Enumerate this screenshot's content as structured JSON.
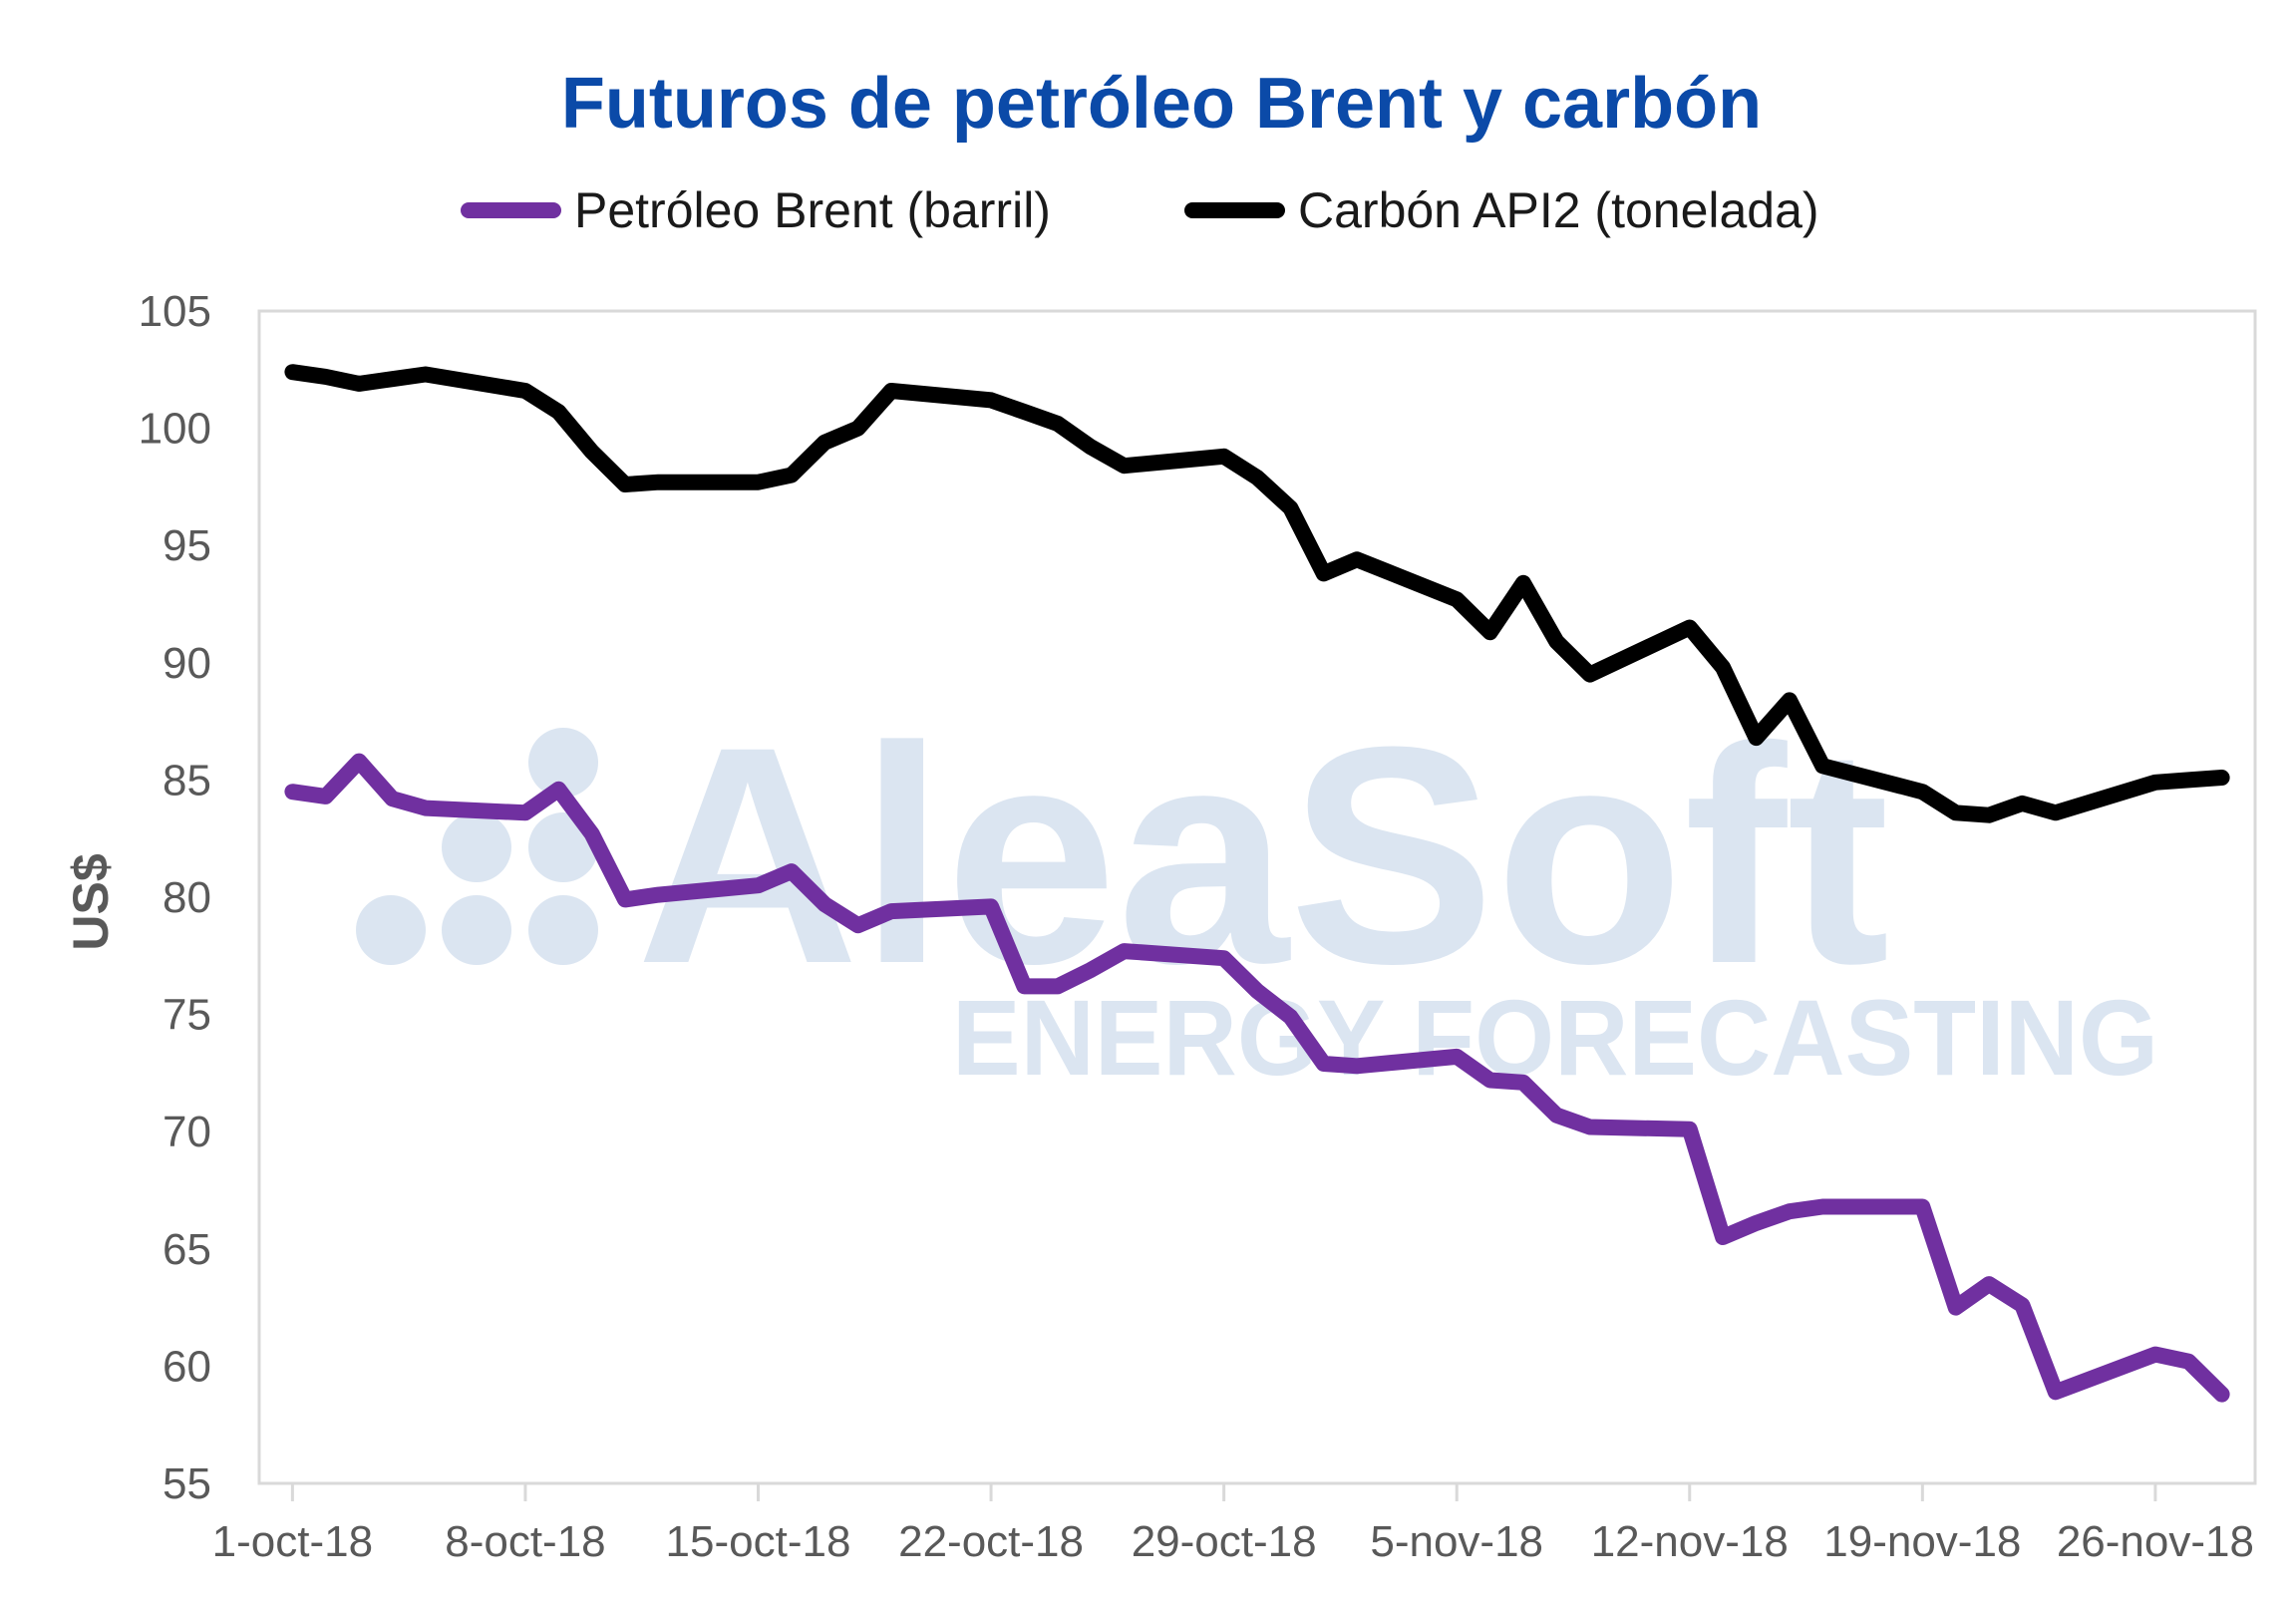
{
  "colors": {
    "title": "#0b4aa8",
    "brent": "#7030a0",
    "coal": "#000000",
    "axis": "#d9d9d9",
    "tick_text": "#595959",
    "watermark": "#dbe5f1"
  },
  "watermark": {
    "brand": "AleaSoft",
    "tagline": "ENERGY FORECASTING"
  },
  "chart_data": {
    "type": "line",
    "title": "Futuros de petróleo Brent y carbón",
    "xlabel": "",
    "ylabel": "US$",
    "ylim": [
      55,
      105
    ],
    "yticks": [
      55,
      60,
      65,
      70,
      75,
      80,
      85,
      90,
      95,
      100,
      105
    ],
    "xticks": [
      "1-oct-18",
      "8-oct-18",
      "15-oct-18",
      "22-oct-18",
      "29-oct-18",
      "5-nov-18",
      "12-nov-18",
      "19-nov-18",
      "26-nov-18"
    ],
    "x_range": [
      "2018-09-30",
      "2018-11-29"
    ],
    "grid": false,
    "legend_position": "top",
    "series": [
      {
        "name": "Petróleo Brent (barril)",
        "color": "#7030a0",
        "points": [
          [
            "2018-10-01",
            84.5
          ],
          [
            "2018-10-02",
            84.3
          ],
          [
            "2018-10-03",
            85.8
          ],
          [
            "2018-10-04",
            84.2
          ],
          [
            "2018-10-05",
            83.8
          ],
          [
            "2018-10-08",
            83.6
          ],
          [
            "2018-10-09",
            84.6
          ],
          [
            "2018-10-10",
            82.7
          ],
          [
            "2018-10-11",
            79.9
          ],
          [
            "2018-10-12",
            80.1
          ],
          [
            "2018-10-15",
            80.5
          ],
          [
            "2018-10-16",
            81.1
          ],
          [
            "2018-10-17",
            79.7
          ],
          [
            "2018-10-18",
            78.8
          ],
          [
            "2018-10-19",
            79.4
          ],
          [
            "2018-10-22",
            79.6
          ],
          [
            "2018-10-23",
            76.2
          ],
          [
            "2018-10-24",
            76.2
          ],
          [
            "2018-10-25",
            76.9
          ],
          [
            "2018-10-26",
            77.7
          ],
          [
            "2018-10-29",
            77.4
          ],
          [
            "2018-10-30",
            76.0
          ],
          [
            "2018-10-31",
            74.9
          ],
          [
            "2018-11-01",
            72.9
          ],
          [
            "2018-11-02",
            72.8
          ],
          [
            "2018-11-05",
            73.2
          ],
          [
            "2018-11-06",
            72.2
          ],
          [
            "2018-11-07",
            72.1
          ],
          [
            "2018-11-08",
            70.7
          ],
          [
            "2018-11-09",
            70.2
          ],
          [
            "2018-11-12",
            70.1
          ],
          [
            "2018-11-13",
            65.5
          ],
          [
            "2018-11-14",
            66.1
          ],
          [
            "2018-11-15",
            66.6
          ],
          [
            "2018-11-16",
            66.8
          ],
          [
            "2018-11-19",
            66.8
          ],
          [
            "2018-11-20",
            62.5
          ],
          [
            "2018-11-21",
            63.5
          ],
          [
            "2018-11-22",
            62.6
          ],
          [
            "2018-11-23",
            58.9
          ],
          [
            "2018-11-26",
            60.5
          ],
          [
            "2018-11-27",
            60.2
          ],
          [
            "2018-11-28",
            58.8
          ]
        ]
      },
      {
        "name": "Carbón API2 (tonelada)",
        "color": "#000000",
        "points": [
          [
            "2018-10-01",
            102.4
          ],
          [
            "2018-10-02",
            102.2
          ],
          [
            "2018-10-03",
            101.9
          ],
          [
            "2018-10-04",
            102.1
          ],
          [
            "2018-10-05",
            102.3
          ],
          [
            "2018-10-08",
            101.6
          ],
          [
            "2018-10-09",
            100.7
          ],
          [
            "2018-10-10",
            99.0
          ],
          [
            "2018-10-11",
            97.6
          ],
          [
            "2018-10-12",
            97.7
          ],
          [
            "2018-10-15",
            97.7
          ],
          [
            "2018-10-16",
            98.0
          ],
          [
            "2018-10-17",
            99.4
          ],
          [
            "2018-10-18",
            100.0
          ],
          [
            "2018-10-19",
            101.6
          ],
          [
            "2018-10-22",
            101.2
          ],
          [
            "2018-10-23",
            100.7
          ],
          [
            "2018-10-24",
            100.2
          ],
          [
            "2018-10-25",
            99.2
          ],
          [
            "2018-10-26",
            98.4
          ],
          [
            "2018-10-29",
            98.8
          ],
          [
            "2018-10-30",
            97.9
          ],
          [
            "2018-10-31",
            96.6
          ],
          [
            "2018-11-01",
            93.8
          ],
          [
            "2018-11-02",
            94.4
          ],
          [
            "2018-11-05",
            92.7
          ],
          [
            "2018-11-06",
            91.3
          ],
          [
            "2018-11-07",
            93.4
          ],
          [
            "2018-11-08",
            90.9
          ],
          [
            "2018-11-09",
            89.5
          ],
          [
            "2018-11-12",
            91.5
          ],
          [
            "2018-11-13",
            89.8
          ],
          [
            "2018-11-14",
            86.8
          ],
          [
            "2018-11-15",
            88.4
          ],
          [
            "2018-11-16",
            85.6
          ],
          [
            "2018-11-19",
            84.5
          ],
          [
            "2018-11-20",
            83.6
          ],
          [
            "2018-11-21",
            83.5
          ],
          [
            "2018-11-22",
            84.0
          ],
          [
            "2018-11-23",
            83.6
          ],
          [
            "2018-11-26",
            84.9
          ],
          [
            "2018-11-27",
            85.0
          ],
          [
            "2018-11-28",
            85.1
          ]
        ]
      }
    ]
  }
}
